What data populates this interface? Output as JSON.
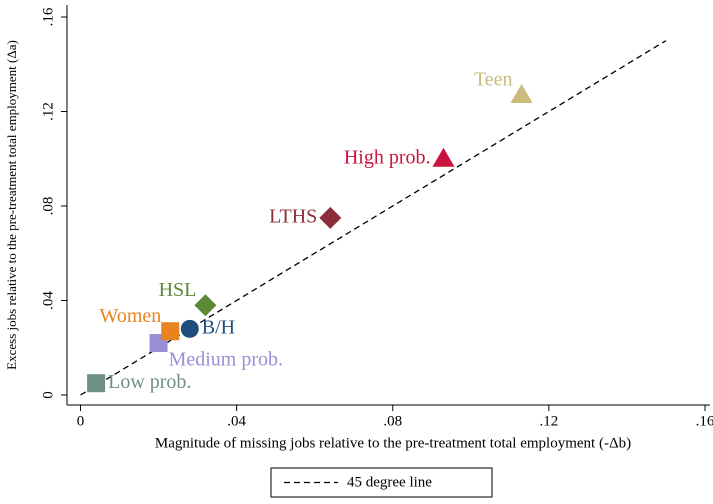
{
  "chart_data": {
    "type": "scatter",
    "xlabel": "Magnitude of missing jobs relative to the pre-treatment total employment (-Δb)",
    "ylabel": "Excess jobs relative to the pre-treatment total employment (Δa)",
    "xlim": [
      0,
      0.16
    ],
    "ylim": [
      0,
      0.16
    ],
    "xticks": [
      0,
      {
        "value": 0.04,
        "label": ".04"
      },
      {
        "value": 0.08,
        "label": ".08"
      },
      {
        "value": 0.12,
        "label": ".12"
      },
      {
        "value": 0.16,
        "label": ".16"
      }
    ],
    "yticks": [
      0,
      {
        "value": 0.04,
        "label": ".04"
      },
      {
        "value": 0.08,
        "label": ".08"
      },
      {
        "value": 0.12,
        "label": ".12"
      },
      {
        "value": 0.16,
        "label": ".16"
      }
    ],
    "series": [
      {
        "name": "Low prob.",
        "color": "#6e8f86",
        "marker": "square",
        "label_position": "right",
        "x": [
          0.004
        ],
        "y": [
          0.005
        ]
      },
      {
        "name": "Medium prob.",
        "color": "#998fd6",
        "marker": "square",
        "label_position": "below-right",
        "x": [
          0.02
        ],
        "y": [
          0.022
        ]
      },
      {
        "name": "Women",
        "color": "#e8831f",
        "marker": "square",
        "label_position": "above-left",
        "x": [
          0.023
        ],
        "y": [
          0.027
        ]
      },
      {
        "name": "B/H",
        "color": "#1d4e7c",
        "marker": "circle",
        "label_position": "right",
        "x": [
          0.028
        ],
        "y": [
          0.028
        ]
      },
      {
        "name": "HSL",
        "color": "#5a8a36",
        "marker": "diamond",
        "label_position": "above-left",
        "x": [
          0.032
        ],
        "y": [
          0.038
        ]
      },
      {
        "name": "LTHS",
        "color": "#8c2f3a",
        "marker": "diamond",
        "label_position": "left",
        "x": [
          0.064
        ],
        "y": [
          0.075
        ]
      },
      {
        "name": "High prob.",
        "color": "#c8143c",
        "marker": "triangle",
        "label_position": "left",
        "x": [
          0.093
        ],
        "y": [
          0.1
        ]
      },
      {
        "name": "Teen",
        "color": "#cbbb7c",
        "marker": "triangle",
        "label_position": "above-left",
        "x": [
          0.113
        ],
        "y": [
          0.127
        ]
      }
    ],
    "reference_line": {
      "name": "45 degree line",
      "color": "#000000",
      "x": [
        0,
        0.15
      ],
      "y": [
        0,
        0.15
      ]
    }
  }
}
